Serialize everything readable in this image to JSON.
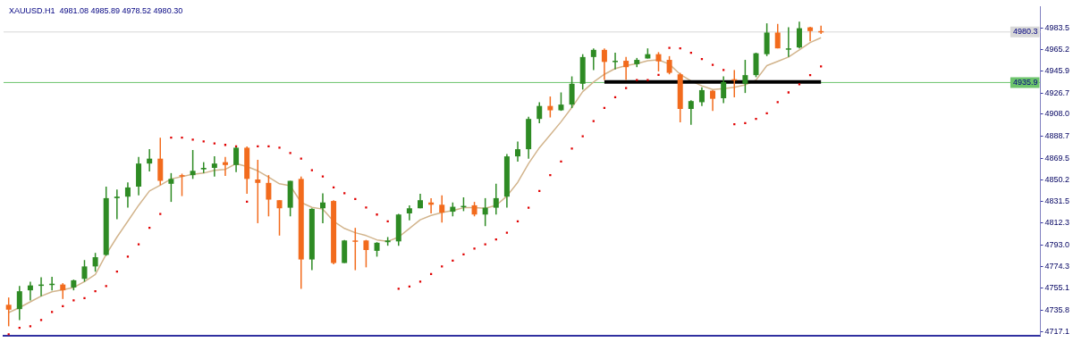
{
  "chart_data": {
    "type": "candlestick",
    "title": "XAUUSD.H1  4981.08 4985.89 4978.52 4980.30",
    "categories": [
      null,
      null,
      null,
      null,
      null,
      null,
      null,
      null,
      null,
      null,
      null,
      null,
      null,
      null,
      null,
      null,
      null,
      null,
      null,
      null,
      null,
      null,
      null,
      null,
      null,
      null,
      null,
      null,
      null,
      null,
      null,
      null,
      null,
      null,
      null,
      null,
      null,
      null,
      null,
      null,
      null,
      null,
      null,
      null,
      null,
      null,
      null,
      null,
      null,
      null,
      null,
      null,
      null,
      null,
      null,
      null,
      null,
      null,
      null,
      null,
      null,
      null,
      null,
      null,
      null,
      null,
      null,
      null,
      null,
      null,
      null,
      null,
      null,
      null,
      null,
      null
    ],
    "ylim": [
      4713.7,
      5002.6
    ],
    "yticks": [
      {
        "value": 4983.5,
        "label": "4983.5"
      },
      {
        "value": 4965.2,
        "label": "4965.2"
      },
      {
        "value": 4945.9,
        "label": "4945.9"
      },
      {
        "value": 4926.7,
        "label": "4926.7"
      },
      {
        "value": 4908.0,
        "label": "4908.0"
      },
      {
        "value": 4888.7,
        "label": "4888.7"
      },
      {
        "value": 4869.5,
        "label": "4869.5"
      },
      {
        "value": 4850.2,
        "label": "4850.2"
      },
      {
        "value": 4831.5,
        "label": "4831.5"
      },
      {
        "value": 4812.3,
        "label": "4812.3"
      },
      {
        "value": 4793.0,
        "label": "4793.0"
      },
      {
        "value": 4774.3,
        "label": "4774.3"
      },
      {
        "value": 4755.1,
        "label": "4755.1"
      },
      {
        "value": 4735.8,
        "label": "4735.8"
      },
      {
        "value": 4717.1,
        "label": "4717.1"
      }
    ],
    "tick_labels": "y",
    "ohlc": [
      [
        4740.6,
        4747.0,
        4721.7,
        4736.3
      ],
      [
        4736.8,
        4757.1,
        4727.2,
        4752.5
      ],
      [
        4753.3,
        4760.9,
        4744.4,
        4757.6
      ],
      [
        4757.6,
        4764.7,
        4748.2,
        4758.4
      ],
      [
        4758.4,
        4765.2,
        4753.3,
        4759.1
      ],
      [
        4758.4,
        4759.6,
        4745.7,
        4753.3
      ],
      [
        4755.8,
        4762.7,
        4753.3,
        4762.1
      ],
      [
        4763.4,
        4779.9,
        4760.9,
        4774.3
      ],
      [
        4774.3,
        4786.2,
        4769.7,
        4782.4
      ],
      [
        4784.4,
        4844.4,
        4783.7,
        4834.3
      ],
      [
        4834.3,
        4841.9,
        4815.8,
        4835.6
      ],
      [
        4835.6,
        4848.2,
        4825.9,
        4843.7
      ],
      [
        4844.4,
        4870.5,
        4836.8,
        4864.7
      ],
      [
        4864.7,
        4877.3,
        4857.8,
        4869.0
      ],
      [
        4869.0,
        4887.4,
        4845.7,
        4849.5
      ],
      [
        4846.9,
        4856.3,
        4831.0,
        4851.2
      ],
      [
        4854.5,
        4855.8,
        4836.1,
        4853.3
      ],
      [
        4854.5,
        4876.6,
        4851.2,
        4858.3
      ],
      [
        4859.6,
        4865.9,
        4856.3,
        4860.9
      ],
      [
        4860.9,
        4871.0,
        4853.3,
        4864.7
      ],
      [
        4865.9,
        4870.5,
        4853.8,
        4863.4
      ],
      [
        4863.4,
        4879.1,
        4857.1,
        4878.6
      ],
      [
        4878.6,
        4879.8,
        4838.1,
        4851.2
      ],
      [
        4850.7,
        4868.0,
        4812.3,
        4847.7
      ],
      [
        4847.7,
        4854.5,
        4818.3,
        4833.0
      ],
      [
        4832.5,
        4832.5,
        4801.4,
        4825.4
      ],
      [
        4825.9,
        4849.5,
        4818.3,
        4849.5
      ],
      [
        4851.2,
        4853.3,
        4754.6,
        4780.4
      ],
      [
        4780.4,
        4825.4,
        4771.0,
        4824.9
      ],
      [
        4825.4,
        4838.6,
        4812.3,
        4830.5
      ],
      [
        4831.8,
        4832.5,
        4776.1,
        4777.3
      ],
      [
        4777.3,
        4797.6,
        4777.3,
        4797.1
      ],
      [
        4797.1,
        4808.2,
        4771.0,
        4796.6
      ],
      [
        4797.1,
        4797.6,
        4773.5,
        4788.7
      ],
      [
        4788.0,
        4795.6,
        4782.9,
        4795.1
      ],
      [
        4795.6,
        4800.1,
        4792.5,
        4797.1
      ],
      [
        4796.3,
        4820.4,
        4792.5,
        4819.9
      ],
      [
        4820.9,
        4828.0,
        4814.8,
        4825.4
      ],
      [
        4825.4,
        4838.1,
        4825.4,
        4832.5
      ],
      [
        4830.5,
        4834.3,
        4820.9,
        4828.5
      ],
      [
        4828.5,
        4836.8,
        4812.8,
        4821.6
      ],
      [
        4822.4,
        4830.5,
        4818.3,
        4826.7
      ],
      [
        4826.7,
        4835.0,
        4822.9,
        4827.5
      ],
      [
        4828.0,
        4831.0,
        4818.3,
        4819.9
      ],
      [
        4819.9,
        4834.3,
        4809.7,
        4825.9
      ],
      [
        4825.9,
        4846.9,
        4819.9,
        4834.3
      ],
      [
        4835.6,
        4873.0,
        4825.9,
        4871.0
      ],
      [
        4871.0,
        4884.1,
        4866.4,
        4877.3
      ],
      [
        4877.3,
        4905.9,
        4869.0,
        4903.9
      ],
      [
        4903.9,
        4918.6,
        4900.1,
        4915.3
      ],
      [
        4915.3,
        4923.6,
        4905.2,
        4911.5
      ],
      [
        4911.5,
        4927.2,
        4911.0,
        4916.5
      ],
      [
        4916.5,
        4941.3,
        4913.5,
        4934.8
      ],
      [
        4934.8,
        4960.8,
        4929.7,
        4958.3
      ],
      [
        4958.3,
        4965.9,
        4946.9,
        4964.6
      ],
      [
        4964.6,
        4965.9,
        4938.1,
        4954.0
      ],
      [
        4954.5,
        4962.1,
        4947.4,
        4955.0
      ],
      [
        4955.0,
        4958.3,
        4938.1,
        4949.4
      ],
      [
        4952.0,
        4957.5,
        4949.4,
        4955.8
      ],
      [
        4957.0,
        4965.9,
        4957.0,
        4960.8
      ],
      [
        4960.8,
        4962.6,
        4945.7,
        4954.5
      ],
      [
        4955.8,
        4959.1,
        4943.1,
        4944.4
      ],
      [
        4943.1,
        4944.4,
        4900.9,
        4912.7
      ],
      [
        4912.7,
        4920.3,
        4898.8,
        4919.6
      ],
      [
        4918.6,
        4931.7,
        4915.3,
        4929.2
      ],
      [
        4928.7,
        4929.2,
        4911.0,
        4921.6
      ],
      [
        4922.1,
        4941.3,
        4917.8,
        4936.3
      ],
      [
        4938.8,
        4946.9,
        4922.9,
        4938.3
      ],
      [
        4934.8,
        4955.8,
        4926.7,
        4942.4
      ],
      [
        4942.4,
        4962.1,
        4940.6,
        4961.6
      ],
      [
        4960.8,
        4987.9,
        4959.1,
        4979.8
      ],
      [
        4979.8,
        4987.4,
        4965.9,
        4965.9
      ],
      [
        4965.1,
        4984.4,
        4958.3,
        4965.9
      ],
      [
        4966.7,
        4989.4,
        4965.9,
        4983.6
      ],
      [
        4984.4,
        4984.9,
        4972.2,
        4981.1
      ],
      [
        4981.08,
        4985.89,
        4978.52,
        4980.3
      ]
    ],
    "colors": [
      "#f26b1d",
      "#2e8b24",
      "#2e8b24",
      "#2e8b24",
      "#2e8b24",
      "#f26b1d",
      "#2e8b24",
      "#2e8b24",
      "#2e8b24",
      "#2e8b24",
      "#2e8b24",
      "#2e8b24",
      "#2e8b24",
      "#2e8b24",
      "#f26b1d",
      "#2e8b24",
      "#f26b1d",
      "#2e8b24",
      "#2e8b24",
      "#2e8b24",
      "#f26b1d",
      "#2e8b24",
      "#f26b1d",
      "#f26b1d",
      "#f26b1d",
      "#f26b1d",
      "#2e8b24",
      "#f26b1d",
      "#2e8b24",
      "#2e8b24",
      "#f26b1d",
      "#2e8b24",
      "#f26b1d",
      "#f26b1d",
      "#2e8b24",
      "#2e8b24",
      "#2e8b24",
      "#2e8b24",
      "#2e8b24",
      "#f26b1d",
      "#f26b1d",
      "#2e8b24",
      "#2e8b24",
      "#f26b1d",
      "#2e8b24",
      "#2e8b24",
      "#2e8b24",
      "#2e8b24",
      "#2e8b24",
      "#2e8b24",
      "#f26b1d",
      "#2e8b24",
      "#2e8b24",
      "#2e8b24",
      "#2e8b24",
      "#f26b1d",
      "#2e8b24",
      "#f26b1d",
      "#2e8b24",
      "#2e8b24",
      "#f26b1d",
      "#f26b1d",
      "#f26b1d",
      "#2e8b24",
      "#2e8b24",
      "#f26b1d",
      "#2e8b24",
      "#f26b1d",
      "#2e8b24",
      "#2e8b24",
      "#2e8b24",
      "#f26b1d",
      "#2e8b24",
      "#2e8b24",
      "#f26b1d",
      "#f26b1d"
    ],
    "series": [
      {
        "type": "line",
        "color": "#d2b48c",
        "marker": "none",
        "values": [
          4733.8,
          4738.1,
          4743.2,
          4748.2,
          4752.0,
          4753.8,
          4755.8,
          4760.9,
          4767.2,
          4784.9,
          4800.1,
          4814.0,
          4828.0,
          4840.6,
          4845.7,
          4851.2,
          4853.3,
          4855.3,
          4856.3,
          4858.8,
          4859.6,
          4864.7,
          4862.1,
          4858.3,
          4852.8,
          4846.9,
          4845.2,
          4830.5,
          4826.2,
          4824.7,
          4814.0,
          4807.7,
          4803.9,
          4801.4,
          4797.6,
          4796.3,
          4800.1,
          4807.7,
          4815.3,
          4819.1,
          4821.6,
          4823.4,
          4825.9,
          4825.9,
          4825.4,
          4827.9,
          4836.1,
          4848.2,
          4864.7,
          4878.6,
          4890.0,
          4901.4,
          4914.0,
          4927.9,
          4936.3,
          4943.1,
          4948.2,
          4950.7,
          4952.5,
          4955.0,
          4955.8,
          4952.0,
          4943.1,
          4937.3,
          4933.0,
          4929.7,
          4930.5,
          4931.7,
          4933.8,
          4938.1,
          4950.7,
          4954.5,
          4958.3,
          4964.6,
          4971.0,
          4975.3
        ]
      },
      {
        "type": "line",
        "color": "#000000",
        "marker": "none",
        "values": [
          null,
          null,
          null,
          null,
          null,
          null,
          null,
          null,
          null,
          null,
          null,
          null,
          null,
          null,
          null,
          null,
          null,
          null,
          null,
          null,
          null,
          null,
          null,
          null,
          null,
          null,
          null,
          null,
          null,
          null,
          null,
          null,
          null,
          null,
          null,
          null,
          null,
          null,
          null,
          null,
          null,
          null,
          null,
          null,
          null,
          null,
          null,
          null,
          null,
          null,
          null,
          null,
          null,
          null,
          null,
          4936.5,
          4936.5,
          4936.5,
          4936.5,
          4936.5,
          4936.5,
          4936.5,
          4936.5,
          4936.5,
          4936.5,
          4936.5,
          4936.5,
          4936.5,
          4936.5,
          4936.5,
          4936.5,
          4936.5,
          4936.5,
          4936.5,
          4936.5,
          4936.5
        ]
      },
      {
        "type": "scatter",
        "color": "#e00000",
        "marker": "square",
        "values": [
          4714.6,
          4720.4,
          4721.7,
          4727.2,
          4734.3,
          4739.4,
          4744.4,
          4746.5,
          4752.5,
          4757.1,
          4769.7,
          4782.9,
          4793.8,
          4808.2,
          4820.4,
          4887.4,
          4887.4,
          4885.7,
          4884.1,
          4882.4,
          4881.1,
          4879.8,
          4831.2,
          4879.8,
          4879.8,
          4878.6,
          4874.0,
          4869.0,
          4858.8,
          4853.3,
          4843.7,
          4838.6,
          4833.5,
          4826.0,
          4819.9,
          4814.0,
          4754.6,
          4756.6,
          4760.9,
          4767.7,
          4774.3,
          4779.4,
          4784.9,
          4790.0,
          4793.8,
          4798.1,
          4803.9,
          4814.0,
          4825.9,
          4840.6,
          4854.5,
          4866.4,
          4877.8,
          4888.7,
          4901.9,
          4913.5,
          4922.9,
          4931.0,
          4938.1,
          4938.1,
          4942.6,
          4966.4,
          4965.9,
          4962.1,
          4956.5,
          4951.5,
          4946.9,
          4899.3,
          4900.3,
          4903.9,
          4908.9,
          4918.6,
          4927.2,
          4934.3,
          4942.4,
          4950.0
        ]
      }
    ],
    "ref_lines": [
      {
        "axis": "y",
        "value": 4980.3,
        "label": "4980.3",
        "color": "#d8d8d8"
      },
      {
        "axis": "y",
        "value": 4935.9,
        "label": "4935.9",
        "color": "#6cc46c"
      }
    ]
  }
}
